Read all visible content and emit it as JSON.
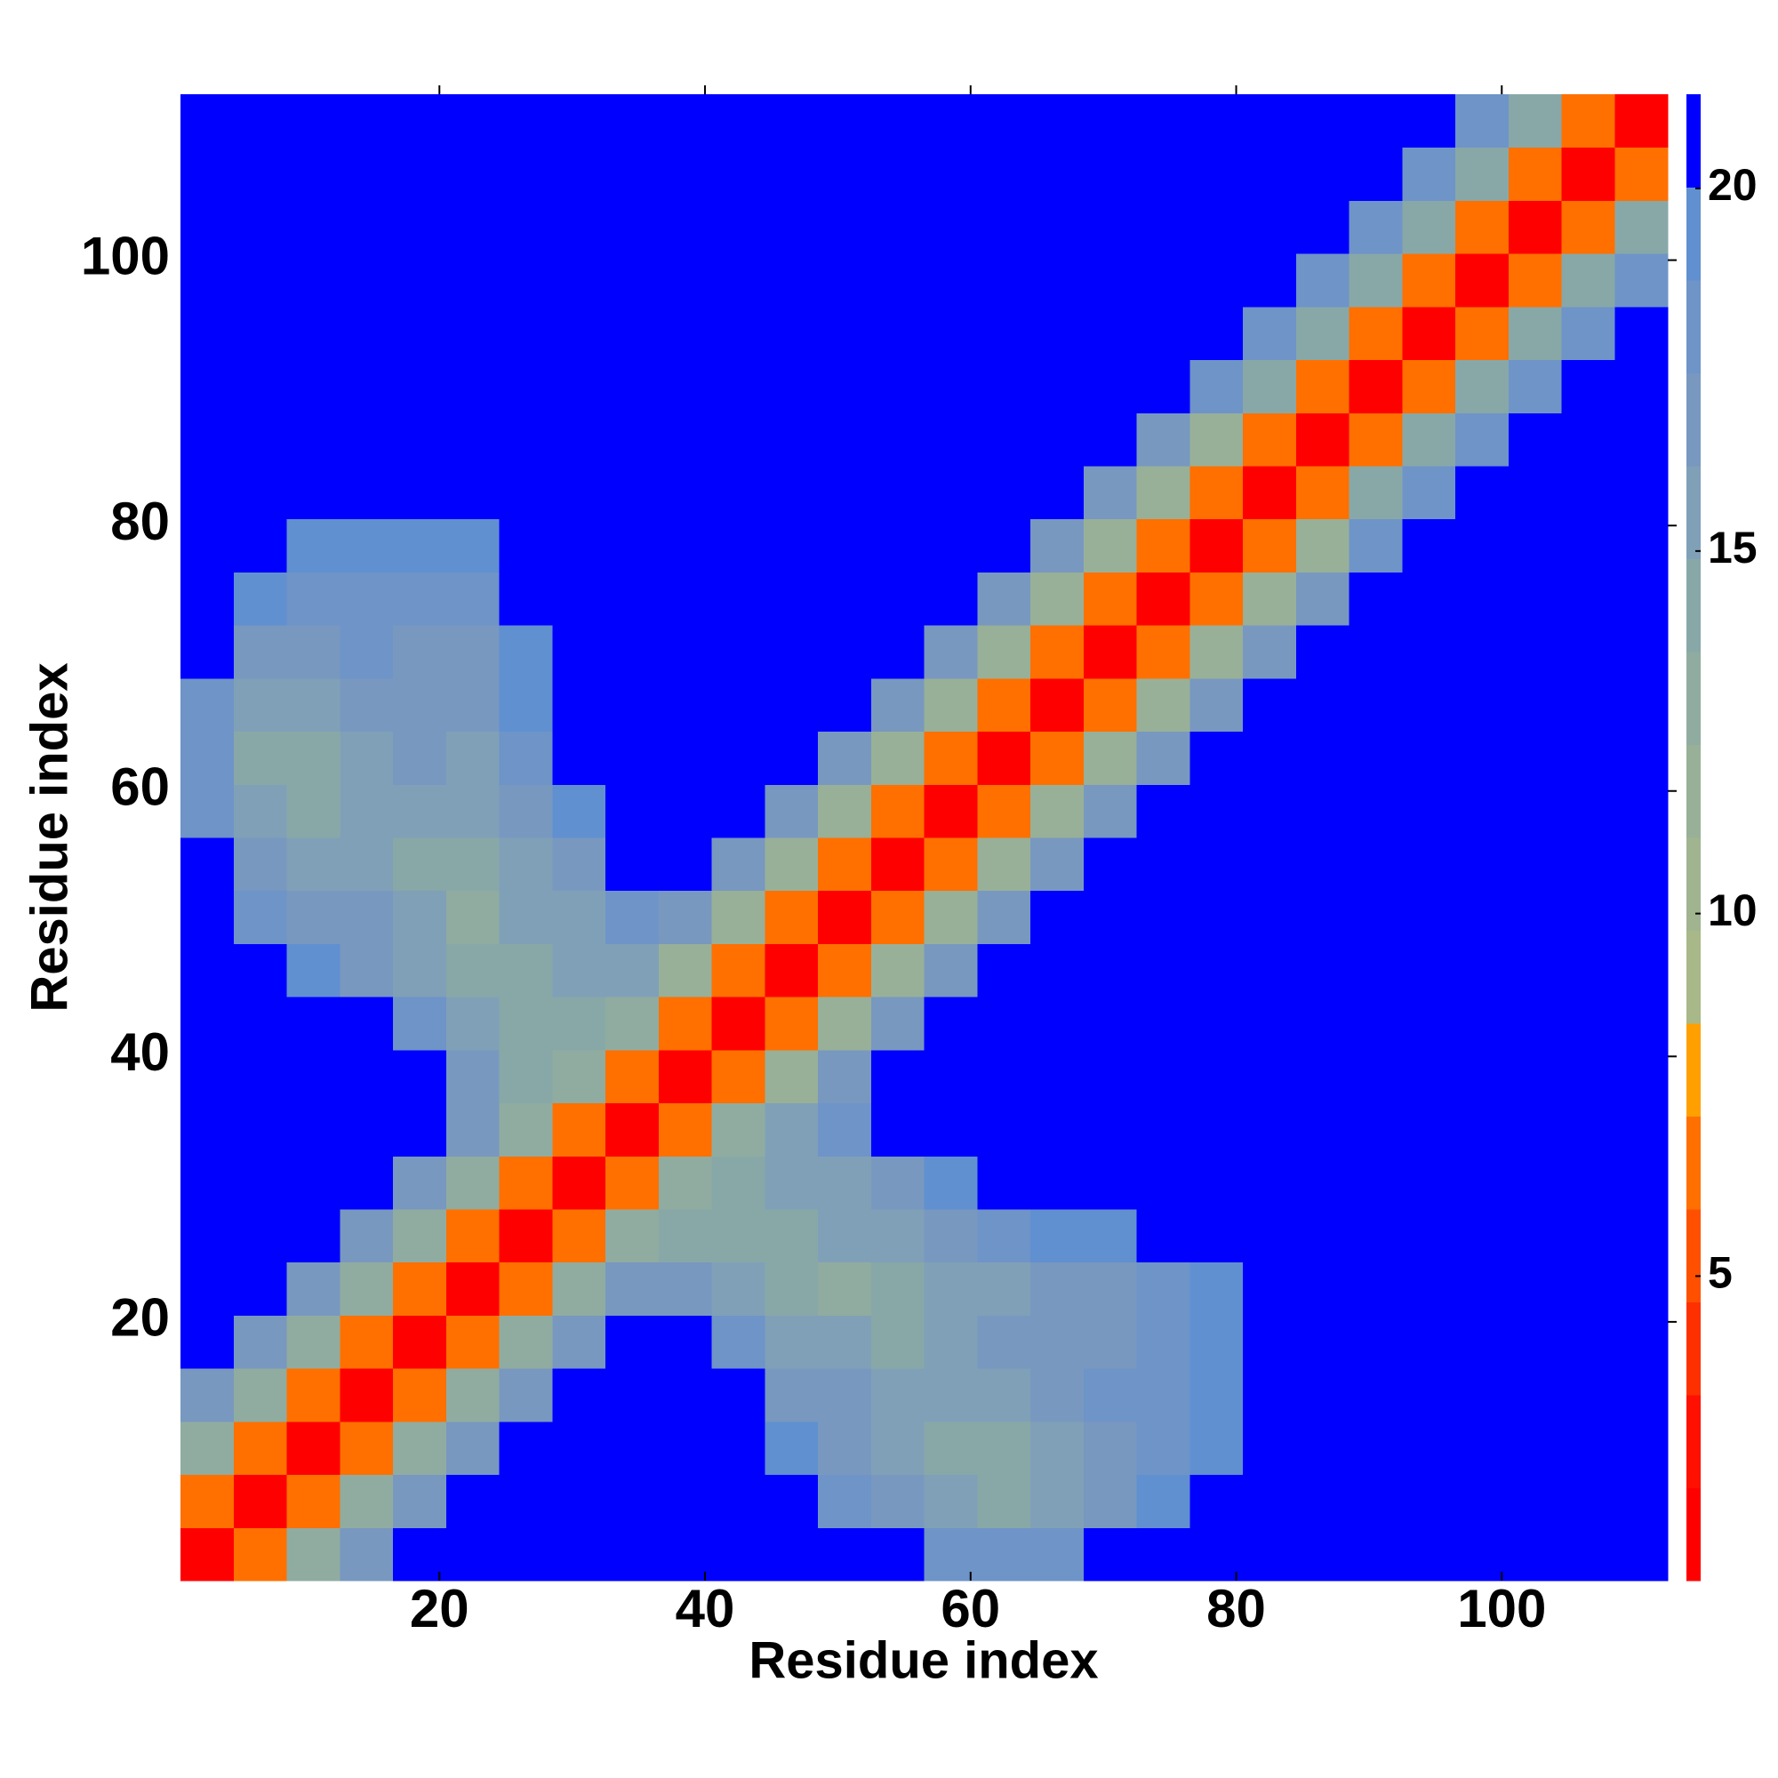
{
  "chart_data": {
    "type": "heatmap",
    "xlabel": "Residue index",
    "ylabel": "Residue index",
    "x": [
      2.5,
      6.5,
      10.5,
      14.5,
      18.5,
      22.5,
      26.5,
      30.5,
      34.5,
      38.5,
      42.5,
      46.5,
      50.5,
      54.5,
      58.5,
      62.5,
      66.5,
      70.5,
      74.5,
      78.5,
      82.5,
      86.5,
      90.5,
      94.5,
      98.5,
      102.5,
      106.5,
      110.5
    ],
    "y": [
      2.5,
      6.5,
      10.5,
      14.5,
      18.5,
      22.5,
      26.5,
      30.5,
      34.5,
      38.5,
      42.5,
      46.5,
      50.5,
      54.5,
      58.5,
      62.5,
      66.5,
      70.5,
      74.5,
      78.5,
      82.5,
      86.5,
      90.5,
      94.5,
      98.5,
      102.5,
      106.5,
      110.5
    ],
    "xlim": [
      0.5,
      112.5
    ],
    "ylim": [
      0.5,
      112.5
    ],
    "xticks": [
      20,
      40,
      60,
      80,
      100
    ],
    "yticks": [
      20,
      40,
      60,
      80,
      100
    ],
    "clim": [
      0.8,
      21.3
    ],
    "cticks": [
      5,
      10,
      15,
      20
    ],
    "colors": [
      "#ff0000",
      "#ff1000",
      "#ff3000",
      "#ff5000",
      "#ff7000",
      "#ffa000",
      "#a8b888",
      "#a0b490",
      "#98b098",
      "#90aca0",
      "#88a8a8",
      "#80a0b8",
      "#7898c0",
      "#6e94c8",
      "#6090d0",
      "#0000ff"
    ],
    "z": [
      [
        2,
        7,
        13,
        17,
        21,
        21,
        21,
        21,
        21,
        21,
        21,
        21,
        21,
        21,
        18,
        18,
        18,
        21,
        21,
        21,
        21,
        21,
        21,
        21,
        21,
        21,
        21,
        21
      ],
      [
        7,
        2,
        7,
        13,
        17,
        21,
        21,
        21,
        21,
        21,
        21,
        21,
        18,
        17,
        15,
        14,
        16,
        17,
        19,
        21,
        21,
        21,
        21,
        21,
        21,
        21,
        21,
        21
      ],
      [
        13,
        7,
        2,
        7,
        13,
        17,
        21,
        21,
        21,
        21,
        21,
        19,
        17,
        16,
        14,
        14,
        16,
        17,
        18,
        19,
        21,
        21,
        21,
        21,
        21,
        21,
        21,
        21
      ],
      [
        17,
        13,
        7,
        2,
        7,
        13,
        17,
        21,
        21,
        21,
        21,
        17,
        17,
        16,
        15,
        15,
        17,
        18,
        18,
        20,
        21,
        21,
        21,
        21,
        21,
        21,
        21,
        21
      ],
      [
        21,
        17,
        13,
        7,
        2,
        7,
        13,
        17,
        21,
        21,
        18,
        16,
        15,
        14,
        15,
        17,
        17,
        17,
        18,
        19,
        21,
        21,
        21,
        21,
        21,
        21,
        21,
        21
      ],
      [
        21,
        21,
        17,
        13,
        7,
        2,
        7,
        13,
        17,
        17,
        15,
        14,
        13,
        14,
        15,
        16,
        17,
        17,
        18,
        19,
        21,
        21,
        21,
        21,
        21,
        21,
        21,
        21
      ],
      [
        21,
        21,
        21,
        17,
        13,
        7,
        2,
        7,
        13,
        14,
        14,
        14,
        15,
        16,
        17,
        18,
        19,
        20,
        21,
        21,
        21,
        21,
        21,
        21,
        21,
        21,
        21,
        21
      ],
      [
        21,
        21,
        21,
        21,
        17,
        13,
        7,
        2,
        7,
        13,
        14,
        15,
        16,
        17,
        19,
        21,
        21,
        21,
        21,
        21,
        21,
        21,
        21,
        21,
        21,
        21,
        21,
        21
      ],
      [
        21,
        21,
        21,
        21,
        21,
        17,
        13,
        7,
        2,
        7,
        13,
        15,
        18,
        21,
        21,
        21,
        21,
        21,
        21,
        21,
        21,
        21,
        21,
        21,
        21,
        21,
        21,
        21
      ],
      [
        21,
        21,
        21,
        21,
        21,
        17,
        14,
        13,
        7,
        2,
        7,
        12,
        17,
        21,
        21,
        21,
        21,
        21,
        21,
        21,
        21,
        21,
        21,
        21,
        21,
        21,
        21,
        21
      ],
      [
        21,
        21,
        21,
        21,
        18,
        15,
        14,
        14,
        13,
        7,
        2,
        7,
        12,
        17,
        21,
        21,
        21,
        21,
        21,
        21,
        21,
        21,
        21,
        21,
        21,
        21,
        21,
        21
      ],
      [
        21,
        21,
        19,
        17,
        16,
        14,
        14,
        15,
        15,
        12,
        7,
        2,
        7,
        12,
        17,
        21,
        21,
        21,
        21,
        21,
        21,
        21,
        21,
        21,
        21,
        21,
        21,
        21
      ],
      [
        21,
        18,
        17,
        17,
        15,
        13,
        15,
        16,
        18,
        17,
        12,
        7,
        2,
        7,
        12,
        17,
        21,
        21,
        21,
        21,
        21,
        21,
        21,
        21,
        21,
        21,
        21,
        21
      ],
      [
        21,
        17,
        16,
        16,
        14,
        14,
        16,
        17,
        21,
        21,
        17,
        12,
        7,
        2,
        7,
        12,
        17,
        21,
        21,
        21,
        21,
        21,
        21,
        21,
        21,
        21,
        21,
        21
      ],
      [
        18,
        15,
        14,
        15,
        15,
        15,
        17,
        19,
        21,
        21,
        21,
        17,
        12,
        7,
        2,
        7,
        12,
        17,
        21,
        21,
        21,
        21,
        21,
        21,
        21,
        21,
        21,
        21
      ],
      [
        18,
        14,
        14,
        15,
        17,
        16,
        18,
        21,
        21,
        21,
        21,
        21,
        17,
        12,
        7,
        2,
        7,
        12,
        17,
        21,
        21,
        21,
        21,
        21,
        21,
        21,
        21,
        21
      ],
      [
        18,
        16,
        16,
        17,
        17,
        17,
        19,
        21,
        21,
        21,
        21,
        21,
        21,
        17,
        12,
        7,
        2,
        7,
        12,
        17,
        21,
        21,
        21,
        21,
        21,
        21,
        21,
        21
      ],
      [
        21,
        17,
        17,
        18,
        17,
        17,
        20,
        21,
        21,
        21,
        21,
        21,
        21,
        21,
        17,
        12,
        7,
        2,
        7,
        12,
        17,
        21,
        21,
        21,
        21,
        21,
        21,
        21
      ],
      [
        21,
        19,
        18,
        18,
        18,
        18,
        21,
        21,
        21,
        21,
        21,
        21,
        21,
        21,
        21,
        17,
        12,
        7,
        2,
        7,
        12,
        17,
        21,
        21,
        21,
        21,
        21,
        21
      ],
      [
        21,
        21,
        19,
        20,
        19,
        19,
        21,
        21,
        21,
        21,
        21,
        21,
        21,
        21,
        21,
        21,
        17,
        12,
        7,
        2,
        7,
        12,
        18,
        21,
        21,
        21,
        21,
        21
      ],
      [
        21,
        21,
        21,
        21,
        21,
        21,
        21,
        21,
        21,
        21,
        21,
        21,
        21,
        21,
        21,
        21,
        21,
        17,
        12,
        7,
        2,
        7,
        14,
        18,
        21,
        21,
        21,
        21
      ],
      [
        21,
        21,
        21,
        21,
        21,
        21,
        21,
        21,
        21,
        21,
        21,
        21,
        21,
        21,
        21,
        21,
        21,
        21,
        17,
        12,
        7,
        2,
        7,
        14,
        18,
        21,
        21,
        21
      ],
      [
        21,
        21,
        21,
        21,
        21,
        21,
        21,
        21,
        21,
        21,
        21,
        21,
        21,
        21,
        21,
        21,
        21,
        21,
        21,
        18,
        14,
        7,
        2,
        7,
        14,
        18,
        21,
        21
      ],
      [
        21,
        21,
        21,
        21,
        21,
        21,
        21,
        21,
        21,
        21,
        21,
        21,
        21,
        21,
        21,
        21,
        21,
        21,
        21,
        21,
        18,
        14,
        7,
        2,
        7,
        14,
        18,
        21
      ],
      [
        21,
        21,
        21,
        21,
        21,
        21,
        21,
        21,
        21,
        21,
        21,
        21,
        21,
        21,
        21,
        21,
        21,
        21,
        21,
        21,
        21,
        18,
        14,
        7,
        2,
        7,
        14,
        18
      ],
      [
        21,
        21,
        21,
        21,
        21,
        21,
        21,
        21,
        21,
        21,
        21,
        21,
        21,
        21,
        21,
        21,
        21,
        21,
        21,
        21,
        21,
        21,
        18,
        14,
        7,
        2,
        7,
        14
      ],
      [
        21,
        21,
        21,
        21,
        21,
        21,
        21,
        21,
        21,
        21,
        21,
        21,
        21,
        21,
        21,
        21,
        21,
        21,
        21,
        21,
        21,
        21,
        21,
        18,
        14,
        7,
        2,
        7
      ],
      [
        21,
        21,
        21,
        21,
        21,
        21,
        21,
        21,
        21,
        21,
        21,
        21,
        21,
        21,
        21,
        21,
        21,
        21,
        21,
        21,
        21,
        21,
        21,
        21,
        18,
        14,
        7,
        2
      ]
    ]
  }
}
